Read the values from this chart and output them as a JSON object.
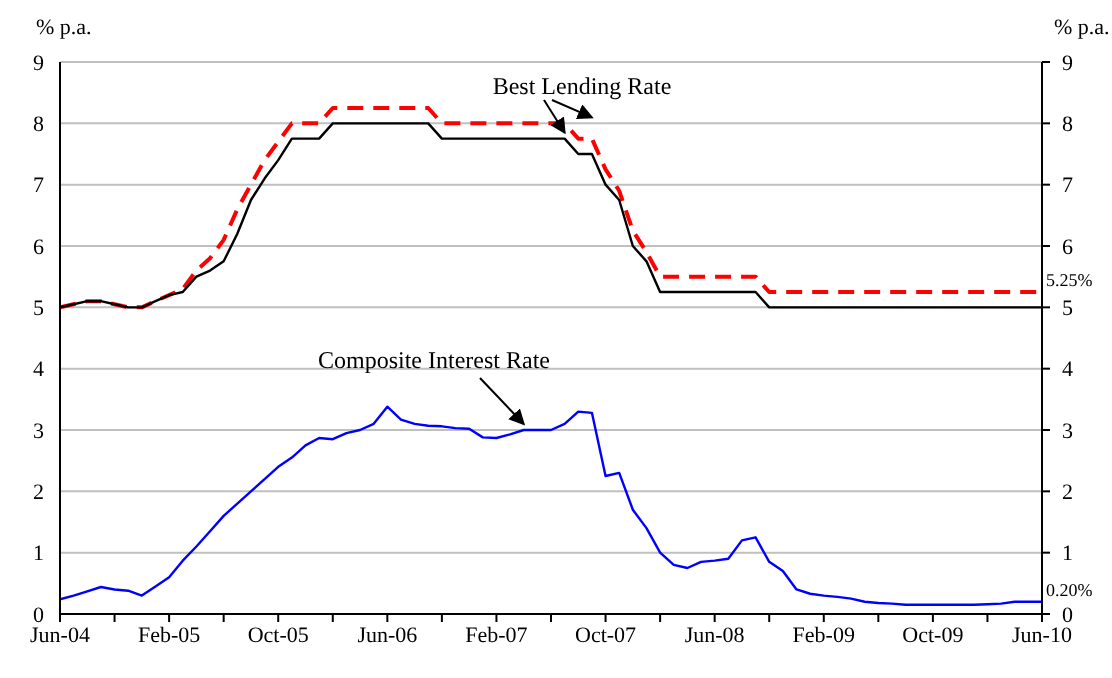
{
  "chart_data": {
    "type": "line",
    "ylabel": "% p.a.",
    "y2label": "% p.a.",
    "x": [
      "2004-06",
      "2004-07",
      "2004-08",
      "2004-09",
      "2004-10",
      "2004-11",
      "2004-12",
      "2005-01",
      "2005-02",
      "2005-03",
      "2005-04",
      "2005-05",
      "2005-06",
      "2005-07",
      "2005-08",
      "2005-09",
      "2005-10",
      "2005-11",
      "2005-12",
      "2006-01",
      "2006-02",
      "2006-03",
      "2006-04",
      "2006-05",
      "2006-06",
      "2006-07",
      "2006-08",
      "2006-09",
      "2006-10",
      "2006-11",
      "2006-12",
      "2007-01",
      "2007-02",
      "2007-03",
      "2007-04",
      "2007-05",
      "2007-06",
      "2007-07",
      "2007-08",
      "2007-09",
      "2007-10",
      "2007-11",
      "2007-12",
      "2008-01",
      "2008-02",
      "2008-03",
      "2008-04",
      "2008-05",
      "2008-06",
      "2008-07",
      "2008-08",
      "2008-09",
      "2008-10",
      "2008-11",
      "2008-12",
      "2009-01",
      "2009-02",
      "2009-03",
      "2009-04",
      "2009-05",
      "2009-06",
      "2009-07",
      "2009-08",
      "2009-09",
      "2009-10",
      "2009-11",
      "2009-12",
      "2010-01",
      "2010-02",
      "2010-03",
      "2010-04",
      "2010-05",
      "2010-06"
    ],
    "series": [
      {
        "color": "#ff0000",
        "line_style": "dashed",
        "values": [
          5.0,
          5.05,
          5.1,
          5.1,
          5.05,
          5.0,
          5.0,
          5.1,
          5.2,
          5.3,
          5.6,
          5.8,
          6.1,
          6.6,
          7.0,
          7.4,
          7.7,
          8.0,
          8.0,
          8.0,
          8.25,
          8.25,
          8.25,
          8.25,
          8.25,
          8.25,
          8.25,
          8.25,
          8.0,
          8.0,
          8.0,
          8.0,
          8.0,
          8.0,
          8.0,
          8.0,
          8.0,
          8.0,
          7.75,
          7.75,
          7.25,
          6.9,
          6.25,
          5.9,
          5.5,
          5.5,
          5.5,
          5.5,
          5.5,
          5.5,
          5.5,
          5.5,
          5.25,
          5.25,
          5.25,
          5.25,
          5.25,
          5.25,
          5.25,
          5.25,
          5.25,
          5.25,
          5.25,
          5.25,
          5.25,
          5.25,
          5.25,
          5.25,
          5.25,
          5.25,
          5.25,
          5.25,
          5.25
        ]
      },
      {
        "color": "#000000",
        "line_style": "solid",
        "values": [
          5.0,
          5.05,
          5.1,
          5.1,
          5.05,
          5.0,
          5.0,
          5.1,
          5.2,
          5.25,
          5.5,
          5.6,
          5.75,
          6.2,
          6.75,
          7.1,
          7.4,
          7.75,
          7.75,
          7.75,
          8.0,
          8.0,
          8.0,
          8.0,
          8.0,
          8.0,
          8.0,
          8.0,
          7.75,
          7.75,
          7.75,
          7.75,
          7.75,
          7.75,
          7.75,
          7.75,
          7.75,
          7.75,
          7.5,
          7.5,
          7.0,
          6.75,
          6.0,
          5.75,
          5.25,
          5.25,
          5.25,
          5.25,
          5.25,
          5.25,
          5.25,
          5.25,
          5.0,
          5.0,
          5.0,
          5.0,
          5.0,
          5.0,
          5.0,
          5.0,
          5.0,
          5.0,
          5.0,
          5.0,
          5.0,
          5.0,
          5.0,
          5.0,
          5.0,
          5.0,
          5.0,
          5.0,
          5.0
        ]
      },
      {
        "color": "#0000ff",
        "line_style": "solid",
        "values": [
          0.24,
          0.3,
          0.37,
          0.44,
          0.4,
          0.38,
          0.3,
          0.45,
          0.6,
          0.87,
          1.1,
          1.35,
          1.6,
          1.8,
          2.0,
          2.2,
          2.4,
          2.55,
          2.75,
          2.87,
          2.85,
          2.95,
          3.0,
          3.1,
          3.38,
          3.17,
          3.1,
          3.07,
          3.06,
          3.03,
          3.02,
          2.88,
          2.87,
          2.93,
          3.0,
          3.0,
          3.0,
          3.1,
          3.3,
          3.28,
          2.25,
          2.3,
          1.7,
          1.4,
          1.0,
          0.8,
          0.75,
          0.85,
          0.87,
          0.9,
          1.2,
          1.25,
          0.85,
          0.7,
          0.4,
          0.33,
          0.3,
          0.28,
          0.25,
          0.2,
          0.18,
          0.17,
          0.15,
          0.15,
          0.15,
          0.15,
          0.15,
          0.15,
          0.16,
          0.17,
          0.2,
          0.2,
          0.2
        ]
      }
    ],
    "xlim": [
      "2004-06",
      "2010-06"
    ],
    "xticks": [
      {
        "value": "2004-06",
        "label": "Jun-04"
      },
      {
        "value": "2004-10",
        "label": null
      },
      {
        "value": "2005-02",
        "label": "Feb-05"
      },
      {
        "value": "2005-06",
        "label": null
      },
      {
        "value": "2005-10",
        "label": "Oct-05"
      },
      {
        "value": "2006-02",
        "label": null
      },
      {
        "value": "2006-06",
        "label": "Jun-06"
      },
      {
        "value": "2006-10",
        "label": null
      },
      {
        "value": "2007-02",
        "label": "Feb-07"
      },
      {
        "value": "2007-06",
        "label": null
      },
      {
        "value": "2007-10",
        "label": "Oct-07"
      },
      {
        "value": "2008-02",
        "label": null
      },
      {
        "value": "2008-06",
        "label": "Jun-08"
      },
      {
        "value": "2008-10",
        "label": null
      },
      {
        "value": "2009-02",
        "label": "Feb-09"
      },
      {
        "value": "2009-06",
        "label": null
      },
      {
        "value": "2009-10",
        "label": "Oct-09"
      },
      {
        "value": "2010-02",
        "label": null
      },
      {
        "value": "2010-06",
        "label": "Jun-10"
      }
    ],
    "ylim": [
      0,
      9
    ],
    "yticks": [
      0,
      1,
      2,
      3,
      4,
      5,
      6,
      7,
      8,
      9
    ],
    "y2lim": [
      0,
      9
    ],
    "y2ticks": [
      0,
      1,
      2,
      3,
      4,
      5,
      6,
      7,
      8,
      9
    ],
    "grid": "y",
    "annotations": [
      "Best Lending Rate",
      "Composite Interest Rate",
      {
        "text": "5.25%",
        "x": "2010-06",
        "y": 5.25
      },
      {
        "text": "0.20%",
        "x": "2010-06",
        "y": 0.2
      }
    ]
  }
}
